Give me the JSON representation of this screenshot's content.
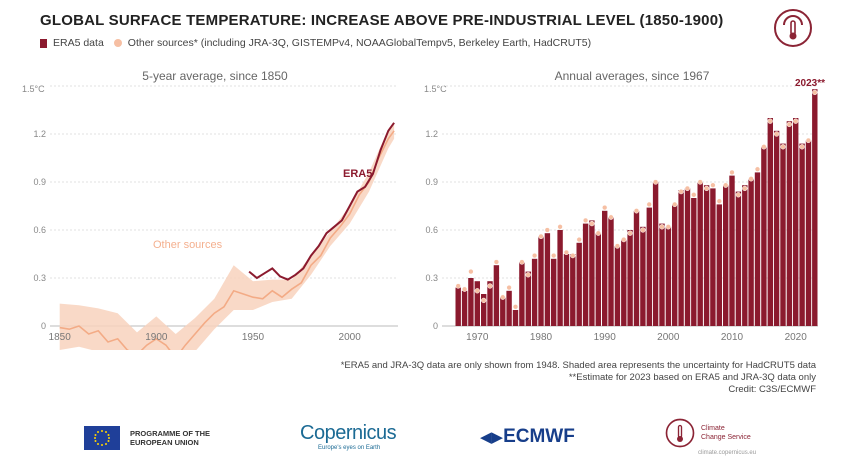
{
  "header": {
    "title": "GLOBAL SURFACE TEMPERATURE: INCREASE ABOVE PRE-INDUSTRIAL LEVEL (1850-1900)",
    "legend_era5": "ERA5 data",
    "legend_other": "Other sources* (including JRA-3Q, GISTEMPv4, NOAAGlobalTempv5, Berkeley Earth, HadCRUT5)"
  },
  "colors": {
    "era5": "#8b1a2e",
    "other": "#f6bfa3",
    "band": "#f8d2bd",
    "axis": "#999999",
    "text": "#666666"
  },
  "chart_data": [
    {
      "type": "line",
      "title": "5-year average, since 1850",
      "xlabel": "",
      "ylabel": "",
      "ylim": [
        0,
        1.5
      ],
      "y_unit_label": "1.5°C",
      "ytick_labels": [
        "1.2",
        "0.9",
        "0.6",
        "0.3",
        "0"
      ],
      "xticks": [
        1850,
        1900,
        1950,
        2000
      ],
      "annotations": [
        "ERA5",
        "Other sources"
      ],
      "series": [
        {
          "name": "ERA5",
          "x": [
            1948,
            1952,
            1956,
            1960,
            1964,
            1968,
            1972,
            1976,
            1980,
            1984,
            1988,
            1992,
            1996,
            2000,
            2004,
            2008,
            2012,
            2016,
            2020,
            2023
          ],
          "values": [
            0.34,
            0.3,
            0.33,
            0.36,
            0.31,
            0.29,
            0.32,
            0.36,
            0.44,
            0.5,
            0.58,
            0.62,
            0.66,
            0.75,
            0.84,
            0.87,
            0.95,
            1.1,
            1.22,
            1.27
          ]
        },
        {
          "name": "Other sources",
          "x": [
            1850,
            1855,
            1860,
            1865,
            1870,
            1875,
            1880,
            1885,
            1890,
            1895,
            1900,
            1905,
            1910,
            1915,
            1920,
            1925,
            1930,
            1935,
            1940,
            1945,
            1950,
            1955,
            1960,
            1965,
            1970,
            1975,
            1980,
            1985,
            1990,
            1995,
            2000,
            2005,
            2010,
            2015,
            2020,
            2023
          ],
          "values": [
            -0.01,
            -0.02,
            0.0,
            -0.05,
            -0.03,
            -0.1,
            -0.08,
            -0.15,
            -0.18,
            -0.12,
            -0.08,
            -0.12,
            -0.2,
            -0.12,
            -0.05,
            0.02,
            0.08,
            0.12,
            0.22,
            0.2,
            0.18,
            0.17,
            0.22,
            0.18,
            0.23,
            0.27,
            0.38,
            0.44,
            0.55,
            0.62,
            0.7,
            0.82,
            0.9,
            1.05,
            1.17,
            1.22
          ]
        }
      ],
      "uncertainty_band": {
        "x": [
          1850,
          1860,
          1870,
          1880,
          1890,
          1900,
          1910,
          1920,
          1930,
          1940,
          1950,
          1960,
          1970,
          1980,
          1990,
          2000,
          2010,
          2020,
          2023
        ],
        "lower": [
          -0.15,
          -0.13,
          -0.16,
          -0.22,
          -0.3,
          -0.22,
          -0.32,
          -0.16,
          -0.02,
          0.1,
          0.1,
          0.15,
          0.17,
          0.32,
          0.5,
          0.64,
          0.84,
          1.11,
          1.17
        ],
        "upper": [
          0.14,
          0.13,
          0.11,
          0.08,
          -0.04,
          0.06,
          -0.05,
          0.05,
          0.17,
          0.38,
          0.28,
          0.29,
          0.29,
          0.44,
          0.59,
          0.75,
          0.96,
          1.23,
          1.27
        ]
      }
    },
    {
      "type": "bar",
      "title": "Annual averages, since 1967",
      "xlabel": "",
      "ylabel": "",
      "ylim": [
        0,
        1.5
      ],
      "y_unit_label": "1.5°C",
      "ytick_labels": [
        "1.2",
        "0.9",
        "0.6",
        "0.3",
        "0"
      ],
      "xticks": [
        1970,
        1980,
        1990,
        2000,
        2010,
        2020
      ],
      "annotations": [
        "2023**"
      ],
      "x": [
        1967,
        1968,
        1969,
        1970,
        1971,
        1972,
        1973,
        1974,
        1975,
        1976,
        1977,
        1978,
        1979,
        1980,
        1981,
        1982,
        1983,
        1984,
        1985,
        1986,
        1987,
        1988,
        1989,
        1990,
        1991,
        1992,
        1993,
        1994,
        1995,
        1996,
        1997,
        1998,
        1999,
        2000,
        2001,
        2002,
        2003,
        2004,
        2005,
        2006,
        2007,
        2008,
        2009,
        2010,
        2011,
        2012,
        2013,
        2014,
        2015,
        2016,
        2017,
        2018,
        2019,
        2020,
        2021,
        2022,
        2023
      ],
      "series": [
        {
          "name": "ERA5",
          "values": [
            0.24,
            0.22,
            0.3,
            0.28,
            0.2,
            0.28,
            0.38,
            0.18,
            0.22,
            0.1,
            0.4,
            0.34,
            0.42,
            0.56,
            0.58,
            0.42,
            0.6,
            0.45,
            0.45,
            0.52,
            0.64,
            0.66,
            0.58,
            0.72,
            0.68,
            0.5,
            0.54,
            0.6,
            0.72,
            0.62,
            0.74,
            0.9,
            0.64,
            0.62,
            0.76,
            0.85,
            0.86,
            0.8,
            0.9,
            0.88,
            0.86,
            0.76,
            0.88,
            0.94,
            0.84,
            0.88,
            0.92,
            0.96,
            1.12,
            1.3,
            1.22,
            1.14,
            1.28,
            1.3,
            1.14,
            1.16,
            1.48
          ]
        },
        {
          "name": "Other sources",
          "values": [
            0.25,
            0.23,
            0.34,
            0.22,
            0.16,
            0.25,
            0.4,
            0.18,
            0.24,
            0.12,
            0.4,
            0.32,
            0.44,
            0.56,
            0.6,
            0.44,
            0.62,
            0.46,
            0.44,
            0.54,
            0.66,
            0.64,
            0.58,
            0.74,
            0.68,
            0.5,
            0.54,
            0.58,
            0.72,
            0.6,
            0.76,
            0.9,
            0.62,
            0.62,
            0.76,
            0.84,
            0.86,
            0.82,
            0.9,
            0.86,
            0.88,
            0.78,
            0.88,
            0.96,
            0.82,
            0.86,
            0.92,
            0.98,
            1.12,
            1.28,
            1.2,
            1.12,
            1.26,
            1.28,
            1.12,
            1.16,
            1.46
          ]
        }
      ]
    }
  ],
  "footnote": {
    "line1": "*ERA5 and JRA-3Q data are only shown from 1948. Shaded area represents the uncertainty for HadCRUT5 data",
    "line2": "**Estimate for 2023 based on ERA5 and JRA-3Q data only",
    "line3": "Credit: C3S/ECMWF"
  },
  "footer": {
    "eu_line1": "PROGRAMME OF THE",
    "eu_line2": "EUROPEAN UNION",
    "copernicus": "Copernicus",
    "copernicus_tagline": "Europe's eyes on Earth",
    "ecmwf": "ECMWF",
    "c3s_line1": "Climate",
    "c3s_line2": "Change Service",
    "c3s_url": "climate.copernicus.eu"
  }
}
